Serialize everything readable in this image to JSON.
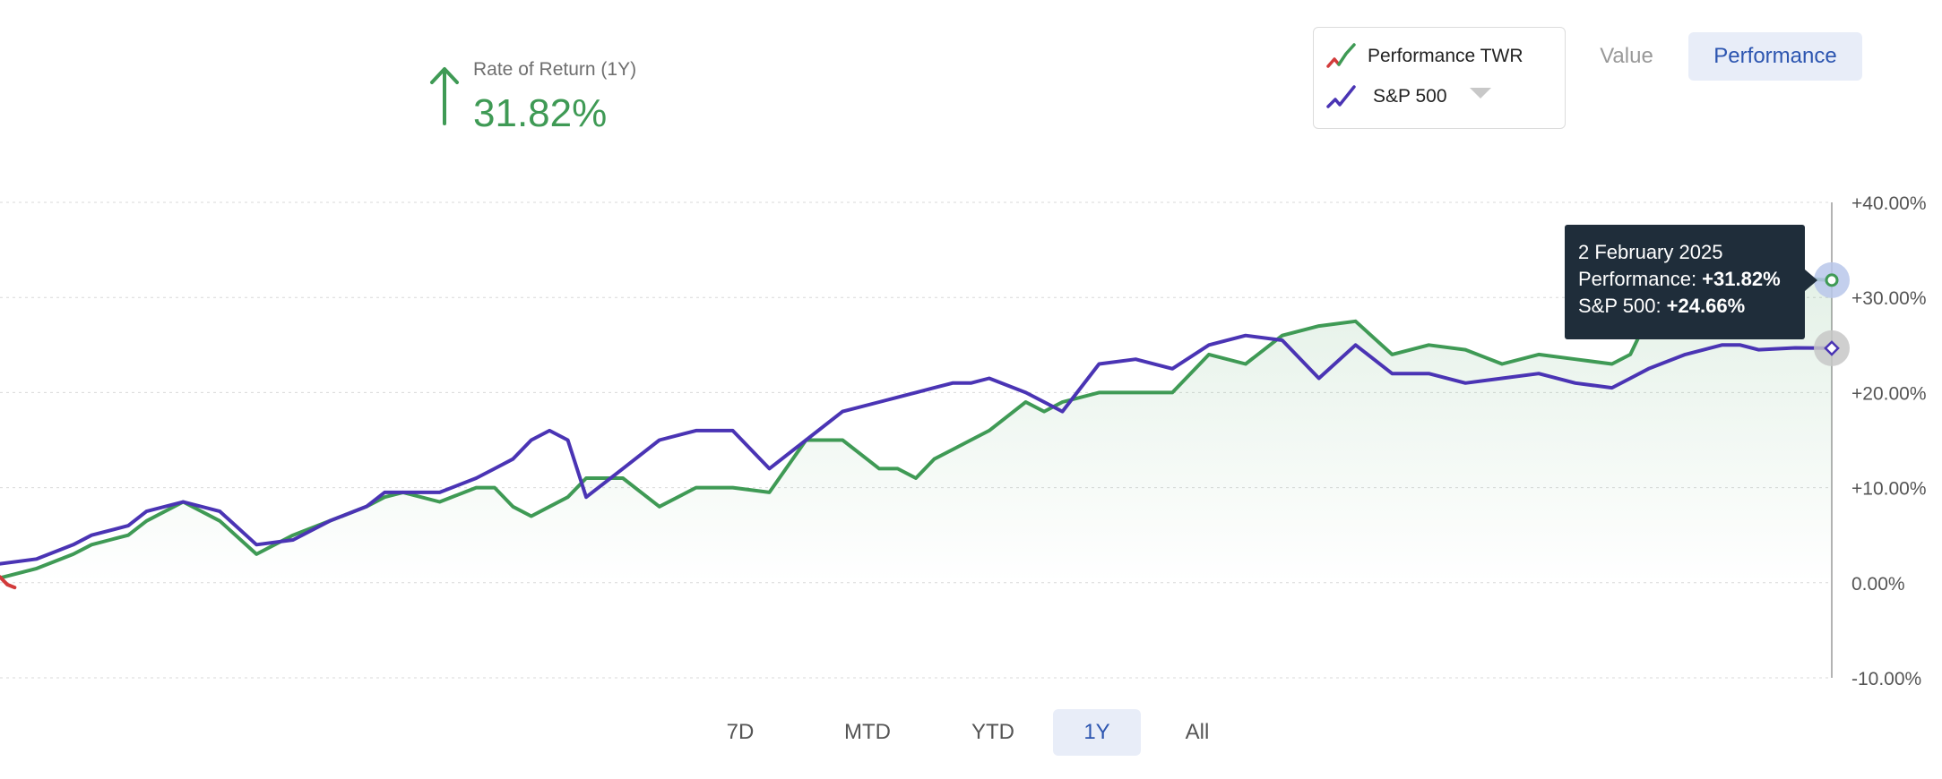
{
  "header": {
    "ror_label": "Rate of Return (1Y)",
    "ror_value": "31.82%"
  },
  "legend": {
    "perf_label": "Performance TWR",
    "bench_label": "S&P 500"
  },
  "toggle": {
    "value_label": "Value",
    "performance_label": "Performance",
    "active": "Performance"
  },
  "tooltip": {
    "date": "2 February 2025",
    "perf_label": "Performance: ",
    "perf_value": "+31.82%",
    "bench_label": "S&P 500: ",
    "bench_value": "+24.66%"
  },
  "ranges": {
    "items": [
      "7D",
      "MTD",
      "YTD",
      "1Y",
      "All"
    ],
    "active": "1Y"
  },
  "colors": {
    "performance": "#3f9a55",
    "performance_negative": "#d23b3b",
    "benchmark": "#4a34b4",
    "accent": "#2c55b0"
  },
  "chart_data": {
    "type": "line",
    "title": "",
    "xlabel": "",
    "ylabel": "",
    "ylim": [
      -10,
      40
    ],
    "y_ticks": [
      "+40.00%",
      "+30.00%",
      "+20.00%",
      "+10.00%",
      "0.00%",
      "-10.00%"
    ],
    "y_tick_values": [
      40,
      30,
      20,
      10,
      0,
      -10
    ],
    "grid": true,
    "x_range": [
      0,
      100
    ],
    "series": [
      {
        "name": "Performance TWR",
        "color": "#3f9a55",
        "x": [
          0,
          2,
          4,
          5,
          6,
          7,
          8,
          10,
          12,
          14,
          16,
          18,
          20,
          21,
          22,
          24,
          26,
          27,
          28,
          29,
          30,
          31,
          32,
          34,
          36,
          38,
          40,
          42,
          44,
          46,
          48,
          49,
          50,
          51,
          52,
          53,
          54,
          56,
          57,
          58,
          60,
          62,
          64,
          66,
          68,
          70,
          72,
          74,
          76,
          78,
          80,
          82,
          84,
          86,
          88,
          89,
          90,
          92,
          94,
          95,
          96,
          98,
          100
        ],
        "values": [
          0.5,
          1.5,
          3,
          4,
          4.5,
          5,
          6.5,
          8.5,
          6.5,
          3,
          5,
          6.5,
          8,
          9,
          9.5,
          8.5,
          10,
          10,
          8,
          7,
          8,
          9,
          11,
          11,
          8,
          10,
          10,
          9.5,
          15,
          15,
          12,
          12,
          11,
          13,
          14,
          15,
          16,
          19,
          18,
          19,
          20,
          20,
          20,
          24,
          23,
          26,
          27,
          27.5,
          24,
          25,
          24.5,
          23,
          24,
          23.5,
          23,
          24,
          28,
          30,
          31,
          31,
          31.5,
          32,
          31.82
        ]
      },
      {
        "name": "S&P 500",
        "color": "#4a34b4",
        "x": [
          0,
          2,
          4,
          5,
          6,
          7,
          8,
          10,
          12,
          14,
          16,
          18,
          20,
          21,
          22,
          24,
          26,
          27,
          28,
          29,
          30,
          31,
          32,
          34,
          36,
          38,
          40,
          42,
          44,
          46,
          48,
          49,
          50,
          51,
          52,
          53,
          54,
          56,
          57,
          58,
          60,
          62,
          64,
          66,
          68,
          70,
          72,
          74,
          76,
          78,
          80,
          82,
          84,
          86,
          88,
          89,
          90,
          92,
          94,
          95,
          96,
          98,
          100
        ],
        "values": [
          2,
          2.5,
          4,
          5,
          5.5,
          6,
          7.5,
          8.5,
          7.5,
          4,
          4.5,
          6.5,
          8,
          9.5,
          9.5,
          9.5,
          11,
          12,
          13,
          15,
          16,
          15,
          9,
          12,
          15,
          16,
          16,
          12,
          15,
          18,
          19,
          19.5,
          20,
          20.5,
          21,
          21,
          21.5,
          20,
          19,
          18,
          23,
          23.5,
          22.5,
          25,
          26,
          25.5,
          21.5,
          25,
          22,
          22,
          21,
          21.5,
          22,
          21,
          20.5,
          21.5,
          22.5,
          24,
          25,
          25,
          24.5,
          24.7,
          24.66
        ]
      }
    ]
  }
}
